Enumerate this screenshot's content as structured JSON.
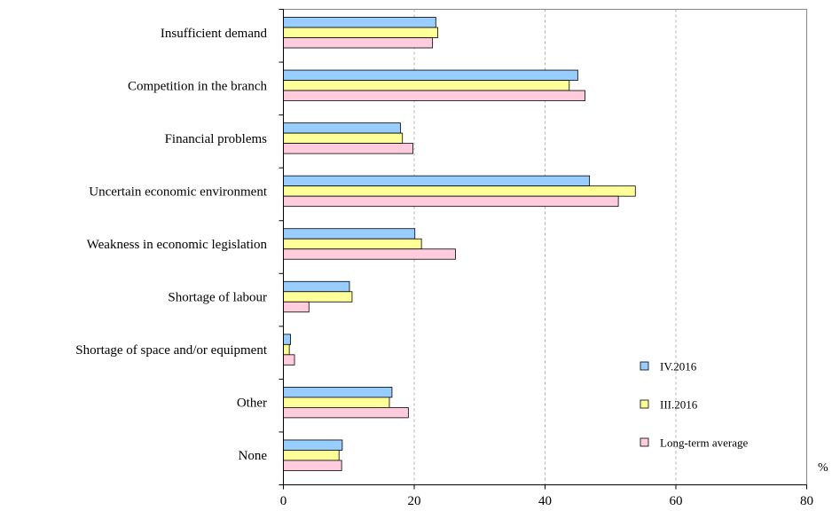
{
  "chart_data": {
    "type": "bar",
    "orientation": "horizontal",
    "categories": [
      "Insufficient demand",
      "Competition in the branch",
      "Financial problems",
      "Uncertain economic environment",
      "Weakness in economic legislation",
      "Shortage of labour",
      "Shortage of space and/or equipment",
      "Other",
      "None"
    ],
    "series": [
      {
        "name": "IV.2016",
        "color": "#99ccff",
        "values": [
          23.3,
          45.0,
          17.9,
          46.8,
          20.1,
          10.1,
          1.1,
          16.6,
          9.0
        ]
      },
      {
        "name": "III.2016",
        "color": "#ffff99",
        "values": [
          23.6,
          43.7,
          18.2,
          53.8,
          21.1,
          10.5,
          0.9,
          16.2,
          8.5
        ]
      },
      {
        "name": "Long-term average",
        "color": "#ffccdd",
        "values": [
          22.8,
          46.1,
          19.8,
          51.2,
          26.3,
          3.9,
          1.7,
          19.1,
          8.9
        ]
      }
    ],
    "xlim": [
      0,
      80
    ],
    "xticks": [
      0,
      20,
      40,
      60,
      80
    ],
    "x_unit": "%",
    "grid": "vertical dashed",
    "legend_position": "bottom-right"
  }
}
